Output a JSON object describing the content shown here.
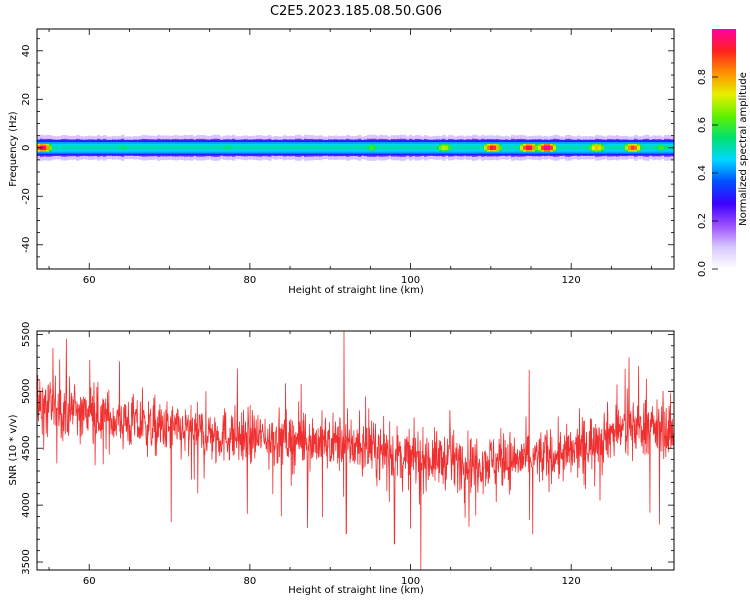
{
  "title": "C2E5.2023.185.08.50.G06",
  "colors": {
    "snr_line": "#f03030",
    "colormap": [
      "#ffffff",
      "#d8c8ff",
      "#9b4dff",
      "#3a00ff",
      "#0050ff",
      "#00d8ff",
      "#00e070",
      "#60f000",
      "#e8f000",
      "#ff9000",
      "#ff2020",
      "#ff00a0"
    ]
  },
  "chart_data": [
    {
      "id": "spectrogram",
      "type": "heatmap",
      "xlabel": "Height of straight line (km)",
      "ylabel": "Frequency (Hz)",
      "xlim": [
        53.5,
        132.8
      ],
      "ylim": [
        -50,
        49
      ],
      "xticks": [
        60,
        80,
        100,
        120
      ],
      "yticks": [
        -40,
        -20,
        0,
        20,
        40
      ],
      "colorbar": {
        "label": "Normalized spectral amplitude",
        "range": [
          0,
          1
        ],
        "ticks": [
          "0.0",
          "0.2",
          "0.4",
          "0.6",
          "0.8"
        ]
      },
      "band": {
        "center_hz": 0,
        "core_halfwidth_hz": 2,
        "outer_halfwidth_hz": 5,
        "hotspots": [
          {
            "x": 54.0,
            "amp": 0.95
          },
          {
            "x": 64.0,
            "amp": 0.55
          },
          {
            "x": 77.0,
            "amp": 0.55
          },
          {
            "x": 95.0,
            "amp": 0.6
          },
          {
            "x": 104.0,
            "amp": 0.7
          },
          {
            "x": 110.0,
            "amp": 0.92
          },
          {
            "x": 114.5,
            "amp": 0.95
          },
          {
            "x": 116.8,
            "amp": 1.0
          },
          {
            "x": 123.0,
            "amp": 0.78
          },
          {
            "x": 127.5,
            "amp": 0.88
          },
          {
            "x": 131.0,
            "amp": 0.6
          }
        ]
      }
    },
    {
      "id": "snr",
      "type": "line",
      "xlabel": "Height of straight line (km)",
      "ylabel": "SNR (10 * v/v)",
      "xlim": [
        53.5,
        132.8
      ],
      "ylim": [
        3430,
        5530
      ],
      "xticks": [
        60,
        80,
        100,
        120
      ],
      "yticks": [
        3500,
        4000,
        4500,
        5000,
        5500
      ],
      "series": [
        {
          "color": "#f03030",
          "trend_x": [
            53.5,
            56,
            60,
            64,
            68,
            72,
            76,
            80,
            84,
            88,
            92,
            96,
            100,
            104,
            108,
            112,
            116,
            120,
            124,
            128,
            132.8
          ],
          "trend_y": [
            4880,
            4850,
            4800,
            4740,
            4680,
            4640,
            4620,
            4600,
            4580,
            4560,
            4540,
            4470,
            4420,
            4400,
            4380,
            4390,
            4420,
            4450,
            4620,
            4700,
            4650
          ],
          "spread": 220,
          "spikes": [
            {
              "x": 91.7,
              "y": 5530
            },
            {
              "x": 101.3,
              "y": 3430
            },
            {
              "x": 98.0,
              "y": 3660
            },
            {
              "x": 92.0,
              "y": 3750
            },
            {
              "x": 55.5,
              "y": 5380
            },
            {
              "x": 70.2,
              "y": 3850
            },
            {
              "x": 131.0,
              "y": 3830
            }
          ]
        }
      ]
    }
  ]
}
